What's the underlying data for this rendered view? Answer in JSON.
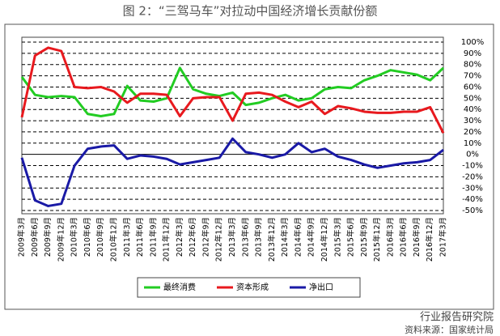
{
  "chart_data": {
    "type": "line",
    "title": "图 2：“三驾马车”对拉动中国经济增长贡献份额",
    "categories": [
      "2009年3月",
      "2009年6月",
      "2009年9月",
      "2009年12月",
      "2010年3月",
      "2010年6月",
      "2010年9月",
      "2010年12月",
      "2011年3月",
      "2011年6月",
      "2011年9月",
      "2011年12月",
      "2012年3月",
      "2012年6月",
      "2012年9月",
      "2012年12月",
      "2013年3月",
      "2013年6月",
      "2013年9月",
      "2013年12月",
      "2014年3月",
      "2014年6月",
      "2014年9月",
      "2014年12月",
      "2015年3月",
      "2015年6月",
      "2015年9月",
      "2015年12月",
      "2016年3月",
      "2016年6月",
      "2016年9月",
      "2016年12月",
      "2017年3月"
    ],
    "series": [
      {
        "name": "最终消费",
        "color": "#22cc22",
        "values": [
          69,
          53,
          51,
          52,
          51,
          36,
          34,
          36,
          61,
          48,
          47,
          50,
          77,
          58,
          54,
          52,
          55,
          44,
          46,
          50,
          53,
          48,
          50,
          58,
          60,
          59,
          66,
          70,
          75,
          73,
          71,
          66,
          77
        ]
      },
      {
        "name": "资本形成",
        "color": "#e8191e",
        "values": [
          33,
          88,
          95,
          92,
          60,
          59,
          60,
          56,
          46,
          54,
          54,
          53,
          34,
          50,
          51,
          51,
          30,
          54,
          55,
          53,
          47,
          42,
          47,
          36,
          43,
          41,
          38,
          37,
          37,
          38,
          38,
          42,
          19
        ]
      },
      {
        "name": "净出口",
        "color": "#1a1aa6",
        "values": [
          -3,
          -41,
          -46,
          -44,
          -10,
          5,
          7,
          8,
          -4,
          -1,
          -2,
          -4,
          -9,
          -7,
          -5,
          -3,
          14,
          2,
          0,
          -3,
          0,
          10,
          2,
          5,
          -2,
          -5,
          -9,
          -12,
          -10,
          -8,
          -7,
          -5,
          4
        ]
      }
    ],
    "ylim": [
      -50,
      100
    ],
    "yticks": [
      {
        "value": -50,
        "label": "-50%"
      },
      {
        "value": -40,
        "label": "-40%"
      },
      {
        "value": -30,
        "label": "-30%"
      },
      {
        "value": -20,
        "label": "-20%"
      },
      {
        "value": -10,
        "label": "-10%"
      },
      {
        "value": 0,
        "label": "0%"
      },
      {
        "value": 10,
        "label": "10%"
      },
      {
        "value": 20,
        "label": "20%"
      },
      {
        "value": 30,
        "label": "30%"
      },
      {
        "value": 40,
        "label": "40%"
      },
      {
        "value": 50,
        "label": "50%"
      },
      {
        "value": 60,
        "label": "60%"
      },
      {
        "value": 70,
        "label": "70%"
      },
      {
        "value": 80,
        "label": "80%"
      },
      {
        "value": 90,
        "label": "90%"
      },
      {
        "value": 100,
        "label": "100%"
      }
    ],
    "grid": true,
    "watermark": "行业报告研究院",
    "source": "资料来源：国家统计局"
  }
}
